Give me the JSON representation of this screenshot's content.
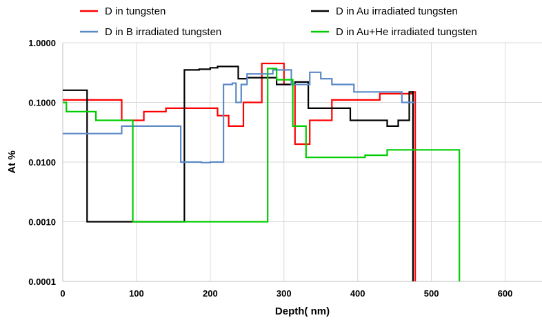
{
  "chart_data": {
    "type": "line",
    "title": "",
    "xlabel": "Depth( nm)",
    "ylabel": "At %",
    "xlim": [
      0,
      650
    ],
    "ylim": [
      0.0001,
      1
    ],
    "y_scale": "log",
    "x_ticks": [
      "0",
      "100",
      "200",
      "300",
      "400",
      "500",
      "600"
    ],
    "y_ticks": [
      "1.0000",
      "0.1000",
      "0.0100",
      "0.0010",
      "0.0001"
    ],
    "grid": true,
    "legend_position": "top",
    "series": [
      {
        "name": "D in tungsten",
        "color": "#ff0000",
        "step": true,
        "x": [
          0,
          80,
          110,
          140,
          210,
          225,
          245,
          270,
          300,
          315,
          335,
          365,
          400,
          430,
          475,
          478
        ],
        "y": [
          0.11,
          0.05,
          0.07,
          0.08,
          0.06,
          0.04,
          0.1,
          0.45,
          0.2,
          0.02,
          0.05,
          0.11,
          0.11,
          0.14,
          0.15,
          0.0001
        ]
      },
      {
        "name": "D in Au irradiated tungsten",
        "color": "#000000",
        "step": true,
        "x": [
          0,
          33,
          165,
          185,
          200,
          210,
          238,
          250,
          290,
          305,
          315,
          333,
          370,
          390,
          410,
          440,
          455,
          470,
          475
        ],
        "y": [
          0.16,
          0.001,
          0.35,
          0.36,
          0.38,
          0.4,
          0.25,
          0.26,
          0.2,
          0.2,
          0.22,
          0.08,
          0.08,
          0.05,
          0.05,
          0.04,
          0.05,
          0.15,
          0.0001
        ]
      },
      {
        "name": "D in B irradiated tungsten",
        "color": "#5b8ac6",
        "step": true,
        "x": [
          0,
          80,
          160,
          188,
          200,
          218,
          230,
          235,
          242,
          250,
          265,
          285,
          310,
          335,
          350,
          365,
          395,
          460,
          478
        ],
        "y": [
          0.03,
          0.04,
          0.01,
          0.0098,
          0.01,
          0.2,
          0.21,
          0.1,
          0.2,
          0.3,
          0.3,
          0.35,
          0.2,
          0.32,
          0.25,
          0.2,
          0.15,
          0.1,
          0.1
        ]
      },
      {
        "name": "D in Au+He irradiated tungsten",
        "color": "#00cc00",
        "step": true,
        "x": [
          0,
          5,
          45,
          95,
          278,
          290,
          312,
          330,
          410,
          440,
          538
        ],
        "y": [
          0.1,
          0.07,
          0.05,
          0.001,
          0.37,
          0.24,
          0.04,
          0.012,
          0.013,
          0.016,
          0.0001
        ]
      }
    ]
  }
}
